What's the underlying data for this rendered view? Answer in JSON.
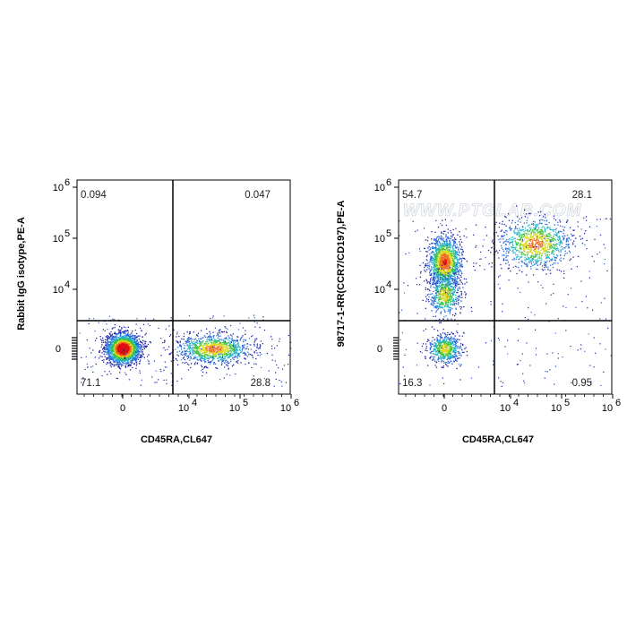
{
  "colors": {
    "event_density_scale": [
      "#1f1fa8",
      "#2a6ad8",
      "#1eb3c8",
      "#3ec43e",
      "#d8d820",
      "#f07020",
      "#e01010"
    ],
    "gate_lines": "#000000",
    "frame": "#000000"
  },
  "watermark": "WWW.PTGLAB.COM",
  "chart_data": [
    {
      "type": "scatter",
      "subtype": "flow-cytometry-pseudocolor-density",
      "xlabel": "CD45RA,CL647",
      "ylabel": "Rabbit IgG isotype,PE-A",
      "x_ticks": [
        {
          "label": "0",
          "decade": 0
        },
        {
          "label": "10",
          "exp": "4",
          "decade": 4
        },
        {
          "label": "10",
          "exp": "5",
          "decade": 5
        },
        {
          "label": "10",
          "exp": "6",
          "decade": 6
        }
      ],
      "y_ticks": [
        {
          "label": "0",
          "decade": 0
        },
        {
          "label": "10",
          "exp": "4",
          "decade": 4
        },
        {
          "label": "10",
          "exp": "5",
          "decade": 5
        },
        {
          "label": "10",
          "exp": "6",
          "decade": 6
        }
      ],
      "quadrant_gate": {
        "x": 4,
        "y": 2800
      },
      "quadrants": {
        "upper_left": "0.094",
        "upper_right": "0.047",
        "lower_left": "71.1",
        "lower_right": "28.8"
      },
      "populations": [
        {
          "x": 0,
          "y": 0,
          "weight": 0.71
        },
        {
          "x": 30000,
          "y": 0,
          "weight": 0.29
        }
      ]
    },
    {
      "type": "scatter",
      "subtype": "flow-cytometry-pseudocolor-density",
      "xlabel": "CD45RA,CL647",
      "ylabel": "98717-1-RR(CCR7/CD197),PE-A",
      "x_ticks": [
        {
          "label": "0",
          "decade": 0
        },
        {
          "label": "10",
          "exp": "4",
          "decade": 4
        },
        {
          "label": "10",
          "exp": "5",
          "decade": 5
        },
        {
          "label": "10",
          "exp": "6",
          "decade": 6
        }
      ],
      "y_ticks": [
        {
          "label": "0",
          "decade": 0
        },
        {
          "label": "10",
          "exp": "4",
          "decade": 4
        },
        {
          "label": "10",
          "exp": "5",
          "decade": 5
        },
        {
          "label": "10",
          "exp": "6",
          "decade": 6
        }
      ],
      "quadrant_gate": {
        "x": 4,
        "y": 2800
      },
      "quadrants": {
        "upper_left": "54.7",
        "upper_right": "28.1",
        "lower_left": "16.3",
        "lower_right": "0.95"
      },
      "populations": [
        {
          "x": 0,
          "y": 35000,
          "weight": 0.4
        },
        {
          "x": 0,
          "y": 8000,
          "weight": 0.15
        },
        {
          "x": 0,
          "y": 0,
          "weight": 0.16
        },
        {
          "x": 30000,
          "y": 80000,
          "weight": 0.28
        }
      ]
    }
  ]
}
